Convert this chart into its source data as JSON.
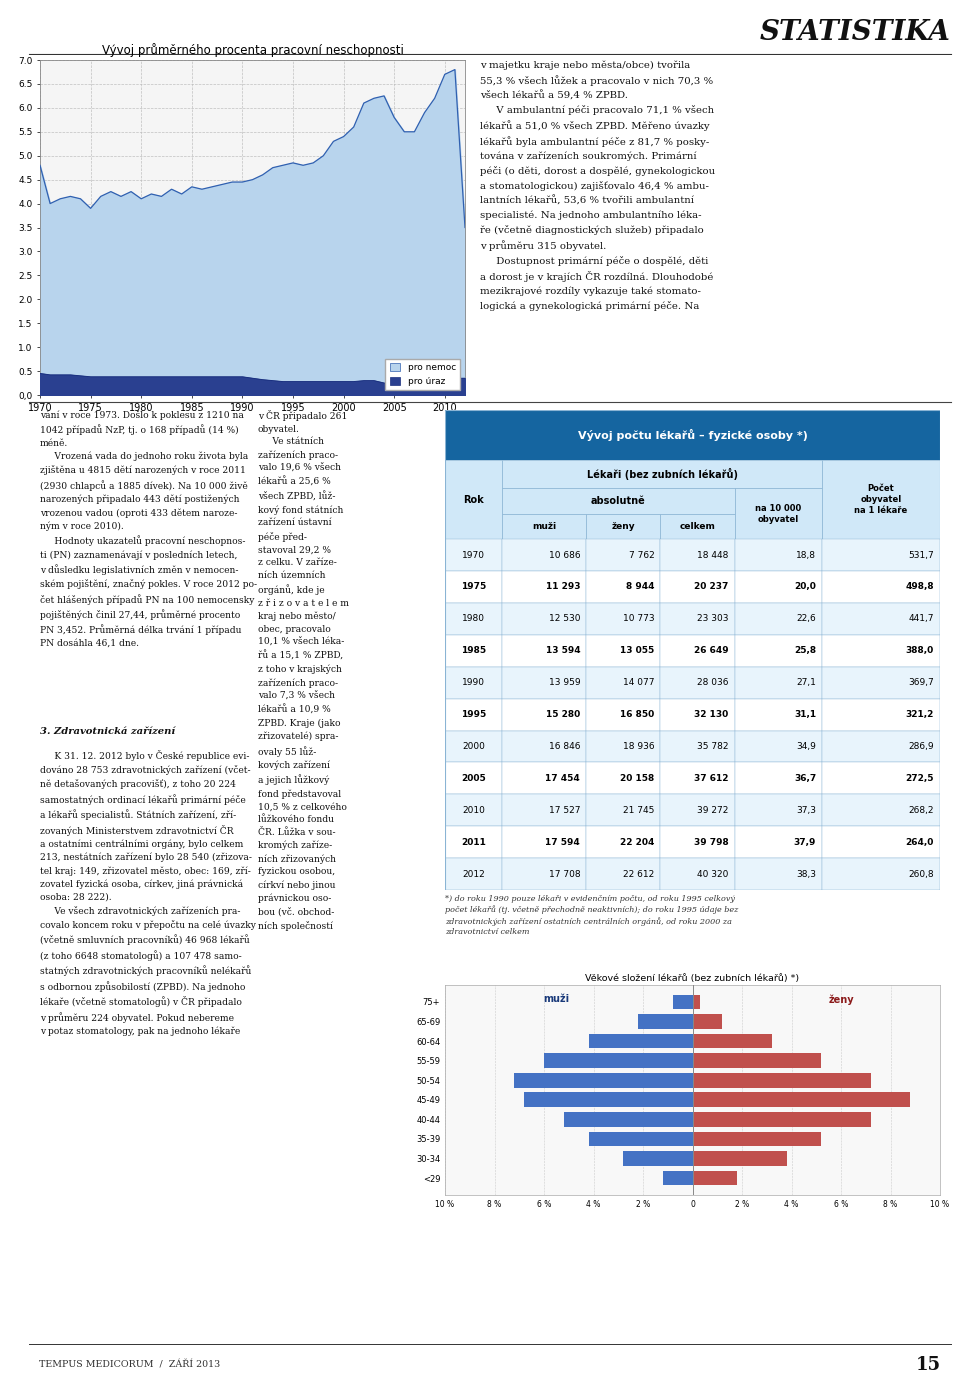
{
  "page_bg": "#ffffff",
  "header_text": "STATISTIKA",
  "chart_title": "Vývoj průměrného procenta pracovní neschopnosti",
  "chart_xlim": [
    1970,
    2012
  ],
  "chart_ylim": [
    0.0,
    7.0
  ],
  "chart_yticks": [
    0.0,
    0.5,
    1.0,
    1.5,
    2.0,
    2.5,
    3.0,
    3.5,
    4.0,
    4.5,
    5.0,
    5.5,
    6.0,
    6.5,
    7.0
  ],
  "chart_xticks": [
    1970,
    1975,
    1980,
    1985,
    1990,
    1995,
    2000,
    2005,
    2010
  ],
  "nemoc_color": "#b8d4ed",
  "uraz_color": "#2a4090",
  "legend_nemoc": "pro nemoc",
  "legend_uraz": "pro úraz",
  "nemoc_data": {
    "years": [
      1970,
      1971,
      1972,
      1973,
      1974,
      1975,
      1976,
      1977,
      1978,
      1979,
      1980,
      1981,
      1982,
      1983,
      1984,
      1985,
      1986,
      1987,
      1988,
      1989,
      1990,
      1991,
      1992,
      1993,
      1994,
      1995,
      1996,
      1997,
      1998,
      1999,
      2000,
      2001,
      2002,
      2003,
      2004,
      2005,
      2006,
      2007,
      2008,
      2009,
      2010,
      2011,
      2012
    ],
    "values": [
      4.8,
      4.0,
      4.1,
      4.15,
      4.1,
      3.9,
      4.15,
      4.25,
      4.15,
      4.25,
      4.1,
      4.2,
      4.15,
      4.3,
      4.2,
      4.35,
      4.3,
      4.35,
      4.4,
      4.45,
      4.45,
      4.5,
      4.6,
      4.75,
      4.8,
      4.85,
      4.8,
      4.85,
      5.0,
      5.3,
      5.4,
      5.6,
      6.1,
      6.2,
      6.25,
      5.8,
      5.5,
      5.5,
      5.9,
      6.2,
      6.7,
      6.8,
      3.5
    ]
  },
  "uraz_data": {
    "years": [
      1970,
      1971,
      1972,
      1973,
      1974,
      1975,
      1976,
      1977,
      1978,
      1979,
      1980,
      1981,
      1982,
      1983,
      1984,
      1985,
      1986,
      1987,
      1988,
      1989,
      1990,
      1991,
      1992,
      1993,
      1994,
      1995,
      1996,
      1997,
      1998,
      1999,
      2000,
      2001,
      2002,
      2003,
      2004,
      2005,
      2006,
      2007,
      2008,
      2009,
      2010,
      2011,
      2012
    ],
    "values": [
      0.45,
      0.42,
      0.42,
      0.42,
      0.4,
      0.38,
      0.38,
      0.38,
      0.38,
      0.38,
      0.38,
      0.38,
      0.38,
      0.38,
      0.38,
      0.38,
      0.38,
      0.38,
      0.38,
      0.38,
      0.38,
      0.35,
      0.32,
      0.3,
      0.28,
      0.28,
      0.28,
      0.28,
      0.28,
      0.28,
      0.28,
      0.28,
      0.3,
      0.3,
      0.25,
      0.2,
      0.2,
      0.2,
      0.2,
      0.2,
      0.2,
      0.35,
      0.35
    ]
  },
  "right_text_top": "v majetku kraje nebo města/obce) tvořila\n55,3 % všech lůžek a pracovalo v nich 70,3 %\nvšech lékařů a 59,4 % ZPBD.\n     V ambulantní péči pracovalo 71,1 % všech\nlékařů a 51,0 % všech ZPBD. Měřeno úvazky\nlékařů byla ambulantní péče z 81,7 % posky-\ntována v zařízeních soukromých. Primární\npéči (o děti, dorost a dospělé, gynekologickou\na stomatologickou) zajišťovalo 46,4 % ambu-\nlantních lékařů, 53,6 % tvořili ambulantní\nspecialisté. Na jednoho ambulantního léka-\nře (včetně diagnostických služeb) připadalo\nv průměru 315 obyvatel.\n     Dostupnost primární péče o dospělé, děti\na dorost je v krajích ČR rozdílná. Dlouhodobé\nmezikrajové rozdíly vykazuje také stomato-\nlogická a gynekologická primární péče. Na",
  "col1_text_upper": "vání v roce 1973. Došlo k poklesu z 1210 na\n1042 případů NzP, tj. o 168 případů (14 %)\nméně.\n     Vrozená vada do jednoho roku života byla\nzjištěna u 4815 dětí narozených v roce 2011\n(2930 chlapců a 1885 dívek). Na 10 000 živě\nnarozených připadalo 443 dětí postižených\nvrozenou vadou (oproti 433 dětem naroze-\nným v roce 2010).\n     Hodnoty ukazatelů pracovní neschopnos-\nti (PN) zaznamenávají v posledních letech,\nv důsledku legislativních změn v nemocen-\nském pojištění, značný pokles. V roce 2012 po-\nčet hlášených případů PN na 100 nemocensky\npojištěných činil 27,44, průměrné procento\nPN 3,452. Průměrná délka trvání 1 případu\nPN dosáhla 46,1 dne.",
  "section_heading": "3. Zdravotnická zařízení",
  "col1_text_lower": "     K 31. 12. 2012 bylo v České republice evi-\ndováno 28 753 zdravotnických zařízení (včet-\nně detašovaných pracovišť), z toho 20 224\nsamostatných ordinací lékařů primární péče\na lékařů specialistů. Státních zařízení, zří-\nzovaných Ministerstvem zdravotnictví ČR\na ostatními centrálními orgány, bylo celkem\n213, nestátních zařízení bylo 28 540 (zřizova-\ntel kraj: 149, zřizovatel město, obec: 169, zří-\nzovatel fyzická osoba, církev, jiná právnická\nosoba: 28 222).\n     Ve všech zdravotnických zařízeních pra-\ncovalo koncem roku v přepočtu na celé úvazky\n(včetně smluvních pracovníků) 46 968 lékařů\n(z toho 6648 stomatologů) a 107 478 samo-\nstatných zdravotnických pracovníků nelékařů\ns odbornou způsobilostí (ZPBD). Na jednoho\nlékaře (včetně stomatologů) v ČR připadalo\nv průměru 224 obyvatel. Pokud nebereme\nv potaz stomatology, pak na jednoho lékaře",
  "col2_text": "v ČR připadalo 261\nobyvatel.\n     Ve státních\nzařízeních praco-\nvalo 19,6 % všech\nlékařů a 25,6 %\nvšech ZPBD, lůž-\nkový fond státních\nzařízení ústavní\npéče před-\nstavoval 29,2 %\nz celku. V zaříze-\nních územních\norgánů, kde je\nz ř i z o v a t e l e m\nkraj nebo město/\nobec, pracovalo\n10,1 % všech léka-\nřů a 15,1 % ZPBD,\nz toho v krajských\nzařízeních praco-\nvalo 7,3 % všech\nlékařů a 10,9 %\nZPBD. Kraje (jako\nzřizovatelé) spra-\novaly 55 lůž-\nkových zařízení\na jejich lůžkový\nfond představoval\n10,5 % z celkového\nlůžkového fondu\nČR. Lůžka v sou-\nkromých zaříze-\nních zřizovaných\nfyzickou osobou,\ncírkví nebo jinou\nprávnickou oso-\nbou (vč. obchod-\nních společností",
  "table_title": "Vývoj počtu lékařů – fyzické osoby *)",
  "table_header_bg": "#1565a0",
  "table_header_text_color": "#ffffff",
  "table_subheader_bg": "#d0e8f8",
  "table_row_alt_bg": "#e8f4fc",
  "table_row_bg": "#ffffff",
  "table_border_color": "#8ab4d4",
  "table_data": [
    [
      "1970",
      "10 686",
      "7 762",
      "18 448",
      "18,8",
      "531,7"
    ],
    [
      "1975",
      "11 293",
      "8 944",
      "20 237",
      "20,0",
      "498,8"
    ],
    [
      "1980",
      "12 530",
      "10 773",
      "23 303",
      "22,6",
      "441,7"
    ],
    [
      "1985",
      "13 594",
      "13 055",
      "26 649",
      "25,8",
      "388,0"
    ],
    [
      "1990",
      "13 959",
      "14 077",
      "28 036",
      "27,1",
      "369,7"
    ],
    [
      "1995",
      "15 280",
      "16 850",
      "32 130",
      "31,1",
      "321,2"
    ],
    [
      "2000",
      "16 846",
      "18 936",
      "35 782",
      "34,9",
      "286,9"
    ],
    [
      "2005",
      "17 454",
      "20 158",
      "37 612",
      "36,7",
      "272,5"
    ],
    [
      "2010",
      "17 527",
      "21 745",
      "39 272",
      "37,3",
      "268,2"
    ],
    [
      "2011",
      "17 594",
      "22 204",
      "39 798",
      "37,9",
      "264,0"
    ],
    [
      "2012",
      "17 708",
      "22 612",
      "40 320",
      "38,3",
      "260,8"
    ]
  ],
  "footnote_text": "*) do roku 1990 pouze lékaři v evidenčním počtu, od roku 1995 celkový\npočet lékařů (tj. včetně přechodně neaktivních); do roku 1995 údaje bez\nzdravotnických zařízení ostatních centrálních orgánů, od roku 2000 za\nzdravotnictví celkem",
  "pyramid_title": "Věkové složení lékařů (bez zubních lékařů) *)",
  "pyramid_age_groups": [
    "75+",
    "65-69",
    "60-64",
    "55-59",
    "50-54",
    "45-49",
    "40-44",
    "35-39",
    "30-34",
    "<29"
  ],
  "pyramid_men_values": [
    0.8,
    2.2,
    4.2,
    6.0,
    7.2,
    6.8,
    5.2,
    4.2,
    2.8,
    1.2
  ],
  "pyramid_women_values": [
    0.3,
    1.2,
    3.2,
    5.2,
    7.2,
    8.8,
    7.2,
    5.2,
    3.8,
    1.8
  ],
  "pyramid_men_color": "#4472c4",
  "pyramid_women_color": "#c0504d",
  "footer_text": "TEMPUS MEDICORUM  /  ZÁŘÍ 2013",
  "page_number": "15"
}
